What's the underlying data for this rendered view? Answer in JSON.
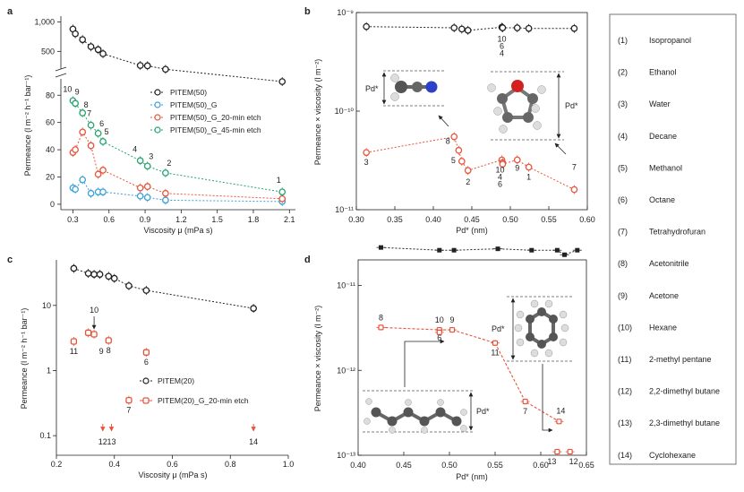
{
  "figure": {
    "solvent_legend": [
      {
        "num": "(1)",
        "name": "Isopropanol"
      },
      {
        "num": "(2)",
        "name": "Ethanol"
      },
      {
        "num": "(3)",
        "name": "Water"
      },
      {
        "num": "(4)",
        "name": "Decane"
      },
      {
        "num": "(5)",
        "name": "Methanol"
      },
      {
        "num": "(6)",
        "name": "Octane"
      },
      {
        "num": "(7)",
        "name": "Tetrahydrofuran"
      },
      {
        "num": "(8)",
        "name": "Acetonitrile"
      },
      {
        "num": "(9)",
        "name": "Acetone"
      },
      {
        "num": "(10)",
        "name": "Hexane"
      },
      {
        "num": "(11)",
        "name": "2-methyl pentane"
      },
      {
        "num": "(12)",
        "name": "2,2-dimethyl butane"
      },
      {
        "num": "(13)",
        "name": "2,3-dimethyl butane"
      },
      {
        "num": "(14)",
        "name": "Cyclohexane"
      }
    ]
  },
  "chart_data": [
    {
      "panel": "a",
      "type": "scatter",
      "xlabel": "Viscosity μ (mPa s)",
      "ylabel": "Permeance (l m⁻² h⁻¹ bar⁻¹)",
      "xlim": [
        0.2,
        2.15
      ],
      "xticks": [
        "0.3",
        "0.6",
        "0.9",
        "1.2",
        "1.5",
        "1.8",
        "2.1"
      ],
      "yticks_lower": [
        "0",
        "20",
        "40",
        "60",
        "80"
      ],
      "yticks_upper": [
        "500",
        "1,000"
      ],
      "ylim_lower": [
        -4,
        92
      ],
      "ylim_upper": [
        200,
        1100
      ],
      "series": [
        {
          "name": "PITEM(50)",
          "color": "#222222",
          "x": [
            0.3,
            0.32,
            0.38,
            0.45,
            0.51,
            0.55,
            0.86,
            0.92,
            1.07,
            2.04
          ],
          "y": [
            880,
            800,
            700,
            580,
            530,
            460,
            260,
            255,
            195,
            90
          ]
        },
        {
          "name": "PITEM(50)_G",
          "color": "#3aa0d8",
          "x": [
            0.3,
            0.32,
            0.38,
            0.45,
            0.51,
            0.55,
            0.86,
            0.92,
            1.07,
            2.04
          ],
          "y": [
            12,
            11,
            18,
            8,
            9,
            9,
            6,
            5,
            3,
            2
          ]
        },
        {
          "name": "PITEM(50)_G_20-min etch",
          "color": "#e8543a",
          "x": [
            0.3,
            0.32,
            0.38,
            0.45,
            0.51,
            0.55,
            0.86,
            0.92,
            1.07,
            2.04
          ],
          "y": [
            38,
            40,
            53,
            43,
            22,
            25,
            12,
            13,
            8,
            4
          ]
        },
        {
          "name": "PITEM(50)_G_45-min etch",
          "color": "#25a36f",
          "x": [
            0.3,
            0.32,
            0.38,
            0.45,
            0.51,
            0.55,
            0.86,
            0.92,
            1.07,
            2.04
          ],
          "y": [
            76,
            74,
            67,
            58,
            52,
            46,
            32,
            28,
            23,
            9
          ]
        }
      ],
      "annotations": [
        "10",
        "9",
        "8",
        "7",
        "6",
        "5",
        "4",
        "3",
        "2",
        "1"
      ]
    },
    {
      "panel": "b",
      "type": "scatter",
      "xlabel": "Pd* (nm)",
      "ylabel": "Permeance × viscosity (l m⁻²)",
      "yscale": "log",
      "xlim": [
        0.3,
        0.6
      ],
      "ylim": [
        1e-11,
        1e-09
      ],
      "xticks": [
        "0.30",
        "0.35",
        "0.40",
        "0.45",
        "0.50",
        "0.55",
        "0.60"
      ],
      "yticks": [
        "10⁻¹¹",
        "10⁻¹⁰",
        "10⁻⁹"
      ],
      "series": [
        {
          "name": "PITEM(50)",
          "color": "#222222",
          "x": [
            0.313,
            0.427,
            0.437,
            0.445,
            0.489,
            0.49,
            0.509,
            0.524,
            0.583
          ],
          "y": [
            7.2e-10,
            7e-10,
            6.8e-10,
            6.6e-10,
            7.1e-10,
            7e-10,
            7e-10,
            6.9e-10,
            6.9e-10
          ]
        },
        {
          "name": "PITEM(50)_G_20-min etch",
          "color": "#e8543a",
          "x": [
            0.313,
            0.427,
            0.433,
            0.437,
            0.445,
            0.489,
            0.49,
            0.49,
            0.509,
            0.524,
            0.583
          ],
          "y": [
            3.8e-11,
            5.5e-11,
            4e-11,
            3.1e-11,
            2.5e-11,
            3.2e-11,
            3e-11,
            2.9e-11,
            3.2e-11,
            2.7e-11,
            1.6e-11
          ]
        }
      ],
      "labels": [
        "3",
        "8",
        "5",
        "2",
        "10",
        "4",
        "6",
        "9",
        "1",
        "7"
      ],
      "top_labels": [
        "10",
        "6",
        "4"
      ],
      "annotation": "Pd*"
    },
    {
      "panel": "c",
      "type": "scatter",
      "xlabel": "Viscosity μ (mPa s)",
      "ylabel": "Permeance (l m⁻² h⁻¹ bar⁻¹)",
      "yscale": "log",
      "xlim": [
        0.2,
        1.0
      ],
      "ylim": [
        0.05,
        50
      ],
      "xticks": [
        "0.2",
        "0.4",
        "0.6",
        "0.8",
        "1.0"
      ],
      "yticks": [
        "0.1",
        "1",
        "10"
      ],
      "series": [
        {
          "name": "PITEM(20)",
          "color": "#222222",
          "x": [
            0.26,
            0.31,
            0.33,
            0.35,
            0.38,
            0.4,
            0.45,
            0.51,
            0.88
          ],
          "y": [
            37,
            31,
            30,
            30,
            28,
            26,
            20,
            17,
            9
          ]
        },
        {
          "name": "PITEM(20)_G_20-min etch",
          "color": "#e8543a",
          "x": [
            0.26,
            0.31,
            0.33,
            0.38,
            0.45,
            0.51
          ],
          "y": [
            2.8,
            3.8,
            3.6,
            2.9,
            0.35,
            1.9
          ]
        }
      ],
      "labels": [
        "10",
        "11",
        "9",
        "8",
        "6",
        "7",
        "12",
        "13",
        "14"
      ]
    },
    {
      "panel": "d",
      "type": "scatter",
      "xlabel": "Pd* (nm)",
      "ylabel": "Permeance × viscosity (l m⁻²)",
      "yscale": "log",
      "xlim": [
        0.4,
        0.65
      ],
      "ylim": [
        1e-13,
        2e-11
      ],
      "xticks": [
        "0.40",
        "0.45",
        "0.50",
        "0.55",
        "0.60",
        "0.65"
      ],
      "yticks": [
        "10⁻¹³",
        "10⁻¹²",
        "10⁻¹¹"
      ],
      "series": [
        {
          "name": "PITEM(20)",
          "color": "#222222",
          "x": [
            0.425,
            0.489,
            0.505,
            0.553,
            0.59,
            0.618,
            0.626,
            0.64
          ],
          "y": [
            2.8e-11,
            2.6e-11,
            2.6e-11,
            2.7e-11,
            2.6e-11,
            2.6e-11,
            2.3e-11,
            2.6e-11
          ]
        },
        {
          "name": "PITEM(20)_G_20-min etch",
          "color": "#e8543a",
          "x": [
            0.425,
            0.489,
            0.489,
            0.503,
            0.55,
            0.583,
            0.62,
            0.618,
            0.632
          ],
          "y": [
            3.2e-12,
            3e-12,
            2.8e-12,
            3e-12,
            2.1e-12,
            4.3e-13,
            2.5e-13,
            1.1e-13,
            1.1e-13
          ]
        }
      ],
      "labels": [
        "8",
        "10",
        "6",
        "9",
        "11",
        "7",
        "14",
        "13",
        "12"
      ],
      "annotation": "Pd*"
    }
  ]
}
